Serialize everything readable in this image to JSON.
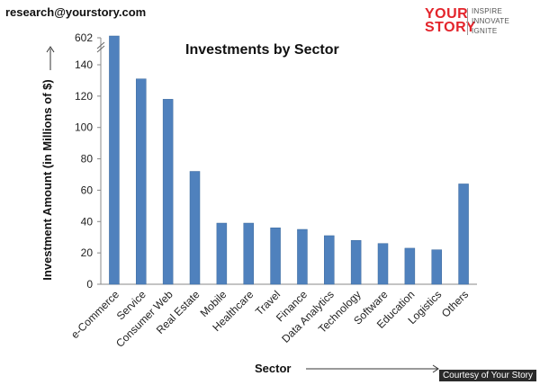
{
  "header": {
    "email": "research@yourstory.com",
    "logo": {
      "brand_line1": "YOUR",
      "brand_line2": "STORY",
      "tagline": [
        "INSPIRE",
        "INNOVATE",
        "IGNITE"
      ]
    }
  },
  "footer": {
    "credit": "Courtesy of Your Story"
  },
  "colors": {
    "bar": "#4f81bd",
    "bar_edge": "#3d6a9e",
    "brand": "#e3242b"
  },
  "chart_data": {
    "type": "bar",
    "title": "Investments by Sector",
    "xlabel": "Sector",
    "ylabel": "Investment Amount  (in Millions of $)",
    "categories": [
      "e-Commerce",
      "Service",
      "Consumer Web",
      "Real Estate",
      "Mobile",
      "Healthcare",
      "Travel",
      "Finance",
      "Data Analytics",
      "Technology",
      "Software",
      "Education",
      "Logistics",
      "Others"
    ],
    "values": [
      602,
      131,
      118,
      72,
      39,
      39,
      36,
      35,
      31,
      28,
      26,
      23,
      22,
      64
    ],
    "ylim": [
      0,
      150
    ],
    "yticks": [
      0,
      20,
      40,
      60,
      80,
      100,
      120,
      140
    ],
    "axis_break": {
      "from": 150,
      "to": 602,
      "top_label": "602"
    },
    "grid": false,
    "legend": "none"
  }
}
